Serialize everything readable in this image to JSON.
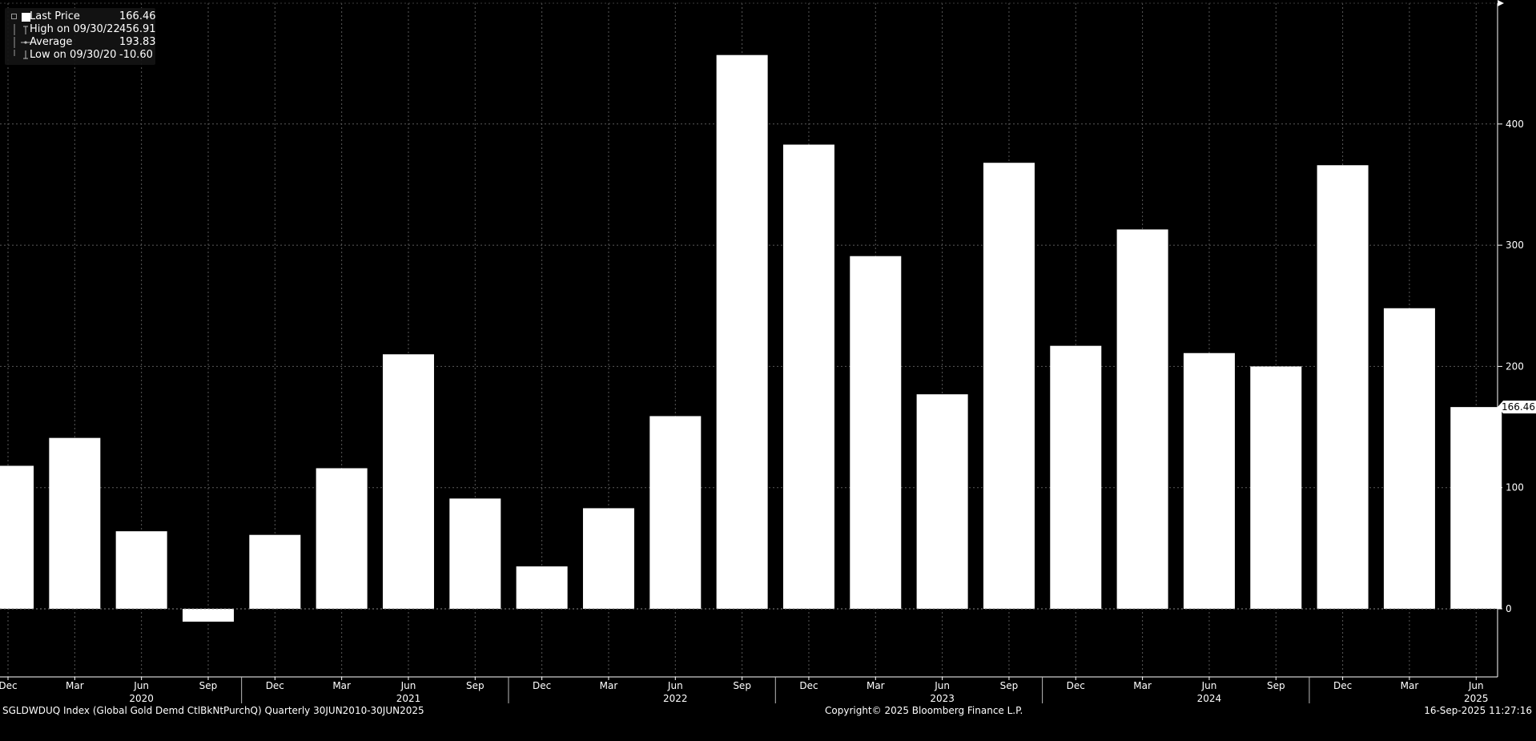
{
  "legend": {
    "items": [
      {
        "label": "Last Price",
        "value": "166.46",
        "icon": "square-icon"
      },
      {
        "label": "High on 09/30/22",
        "value": "456.91",
        "icon": "high-marker-icon"
      },
      {
        "label": "Average",
        "value": "193.83",
        "icon": "average-marker-icon"
      },
      {
        "label": "Low on 09/30/20",
        "value": "-10.60",
        "icon": "low-marker-icon"
      }
    ]
  },
  "last_price_tag": "166.46",
  "footer": {
    "left": "SGLDWDUQ Index (Global Gold Demd CtlBkNtPurchQ)  Quarterly 30JUN2010-30JUN2025",
    "center": "Copyright© 2025 Bloomberg Finance L.P.",
    "right": "16-Sep-2025 11:27:16"
  },
  "colors": {
    "background": "#000000",
    "bars": "#ffffff",
    "grid": "#5a5a5a",
    "text": "#ffffff"
  },
  "chart_data": {
    "type": "bar",
    "title": "",
    "xlabel": "",
    "ylabel": "",
    "ylim": [
      -55,
      500
    ],
    "yticks": [
      0,
      100,
      200,
      300,
      400
    ],
    "grid": true,
    "legend_position": "top-left",
    "categories": [
      "Dec 2019",
      "Mar 2020",
      "Jun 2020",
      "Sep 2020",
      "Dec 2020",
      "Mar 2021",
      "Jun 2021",
      "Sep 2021",
      "Dec 2021",
      "Mar 2022",
      "Jun 2022",
      "Sep 2022",
      "Dec 2022",
      "Mar 2023",
      "Jun 2023",
      "Sep 2023",
      "Dec 2023",
      "Mar 2024",
      "Jun 2024",
      "Sep 2024",
      "Dec 2024",
      "Mar 2025",
      "Jun 2025"
    ],
    "series": [
      {
        "values": [
          118,
          141,
          64,
          -10.6,
          61,
          116,
          210,
          91,
          35,
          83,
          159,
          456.91,
          383,
          291,
          177,
          368,
          217,
          313,
          211,
          200,
          366,
          248,
          166.46
        ]
      }
    ],
    "month_labels": [
      "Dec",
      "Mar",
      "Jun",
      "Sep",
      "Dec",
      "Mar",
      "Jun",
      "Sep",
      "Dec",
      "Mar",
      "Jun",
      "Sep",
      "Dec",
      "Mar",
      "Jun",
      "Sep",
      "Dec",
      "Mar",
      "Jun",
      "Sep",
      "Dec",
      "Mar",
      "Jun"
    ],
    "year_labels": [
      {
        "label": "2020",
        "at": 2
      },
      {
        "label": "2021",
        "at": 6
      },
      {
        "label": "2022",
        "at": 10
      },
      {
        "label": "2023",
        "at": 14
      },
      {
        "label": "2024",
        "at": 18
      },
      {
        "label": "2025",
        "at": 22
      }
    ],
    "year_dividers": [
      4,
      8,
      12,
      16,
      20
    ]
  }
}
